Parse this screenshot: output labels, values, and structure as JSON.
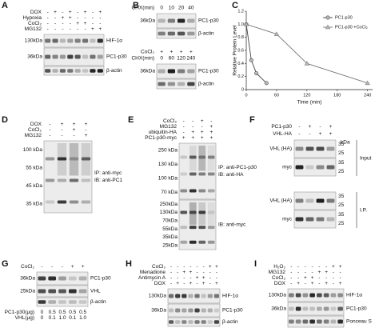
{
  "panels": [
    {
      "label": "A",
      "sections": [
        {
          "rows": [
            {
              "name": "DOX",
              "values": [
                "-",
                "+",
                "-",
                "+",
                "-",
                "+",
                "-",
                "+"
              ]
            },
            {
              "name": "Hypoxia",
              "values": [
                "-",
                "-",
                "+",
                "+",
                "-",
                "-",
                "-",
                "-"
              ]
            },
            {
              "name": "CoCl₂",
              "values": [
                "-",
                "-",
                "-",
                "-",
                "+",
                "+",
                "-",
                "-"
              ]
            },
            {
              "name": "MG132",
              "values": [
                "-",
                "-",
                "-",
                "-",
                "-",
                "-",
                "+",
                "+"
              ]
            }
          ],
          "blots": [
            {
              "markers": [
                "130kDa"
              ],
              "labels": [
                "HIF-1α"
              ]
            },
            {
              "markers": [
                "36kDa"
              ],
              "labels": [
                "PC1-p30"
              ]
            },
            {
              "labels": [
                "β-actin"
              ]
            }
          ]
        }
      ]
    },
    {
      "label": "B",
      "sections": [
        {
          "rows": [
            {
              "name": "CHX(min)",
              "values": [
                "0",
                "10",
                "20",
                "40"
              ]
            }
          ],
          "blots": [
            {
              "markers": [
                "36kDa"
              ],
              "labels": [
                "PC1-p30"
              ]
            },
            {
              "labels": [
                "β-actin"
              ]
            }
          ]
        },
        {
          "rows": [
            {
              "name": "CoCl₂",
              "values": [
                "+",
                "+",
                "+",
                "+"
              ]
            },
            {
              "name": "CHX(min)",
              "values": [
                "0",
                "60",
                "120",
                "240"
              ]
            }
          ],
          "blots": [
            {
              "markers": [
                "36kDa"
              ],
              "labels": [
                "PC1-p30"
              ]
            },
            {
              "labels": [
                "β-actin"
              ]
            }
          ]
        }
      ]
    },
    {
      "label": "D",
      "sections": [
        {
          "rows": [
            {
              "name": "DOX",
              "values": [
                "-",
                "+",
                "+",
                "+"
              ]
            },
            {
              "name": "CoCl₂",
              "values": [
                "-",
                "-",
                "+",
                "-"
              ]
            },
            {
              "name": "MG132",
              "values": [
                "-",
                "-",
                "-",
                "+"
              ]
            }
          ],
          "blots": [
            {
              "markers": [
                "100 kDa",
                "55 kDa",
                "45 kDa",
                "35 kDa"
              ],
              "labels": [
                "IP: anti-myc",
                "IB: anti-PC1"
              ]
            }
          ]
        }
      ]
    },
    {
      "label": "E",
      "sections": [
        {
          "rows": [
            {
              "name": "CoCl₂",
              "values": [
                "-",
                "-",
                "+",
                "-"
              ]
            },
            {
              "name": "MG132",
              "values": [
                "-",
                "-",
                "-",
                "+"
              ]
            },
            {
              "name": "ubiquitin-HA",
              "values": [
                "-",
                "+",
                "+",
                "+"
              ]
            },
            {
              "name": "PC1-p30-myc",
              "values": [
                "+",
                "+",
                "+",
                "+"
              ]
            }
          ],
          "blots": [
            {
              "markers": [
                "250 kDa",
                "130 kDa",
                "100 kDa",
                "70 kDa"
              ],
              "labels": [
                "IP: anti-PC1-p30",
                "IB: anti-HA"
              ]
            },
            {
              "markers": [
                "250kDa",
                "130kDa",
                "70kDa",
                "55kDa",
                "35kDa",
                "25kDa"
              ],
              "labels": [
                "IB: anti-myc"
              ]
            }
          ]
        }
      ]
    },
    {
      "label": "F",
      "header": "kDa",
      "sections": [
        {
          "rows": [
            {
              "name": "PC1-p30",
              "values": [
                "-",
                "+",
                "-",
                "+"
              ]
            },
            {
              "name": "VHL-HA",
              "values": [
                "-",
                "-",
                "+",
                "+"
              ]
            }
          ],
          "group": "Input",
          "blots": [
            {
              "markers": [
                "35",
                "25"
              ],
              "labels": [
                "VHL (HA)"
              ]
            },
            {
              "markers": [
                "35",
                "25"
              ],
              "labels": [
                "myc"
              ]
            }
          ]
        },
        {
          "group": "I.P.",
          "blots": [
            {
              "markers": [
                "35",
                "25"
              ],
              "labels": [
                "VHL (HA)"
              ]
            },
            {
              "markers": [
                "35",
                "25"
              ],
              "labels": [
                "myc"
              ]
            }
          ]
        }
      ]
    },
    {
      "label": "G",
      "sections": [
        {
          "rows": [
            {
              "name": "CoCl₂",
              "values": [
                "-",
                "-",
                "-",
                "+",
                "+"
              ]
            }
          ],
          "blots": [
            {
              "markers": [
                "36kDa"
              ],
              "labels": [
                "PC1-p30"
              ]
            },
            {
              "markers": [
                "25kDa"
              ],
              "labels": [
                "VHL"
              ]
            },
            {
              "labels": [
                "β-actin"
              ]
            }
          ]
        },
        {
          "rows": [
            {
              "name": "PC1-p30(μg)",
              "values": [
                "0",
                "0.5",
                "0.5",
                "0.5",
                "0.5"
              ]
            },
            {
              "name": "VHL(μg)",
              "values": [
                "0",
                "0.1",
                "1.0",
                "0.1",
                "1.0"
              ]
            }
          ]
        }
      ]
    },
    {
      "label": "H",
      "sections": [
        {
          "rows": [
            {
              "name": "CoCl₂",
              "values": [
                "-",
                "-",
                "-",
                "-",
                "-",
                "-",
                "+",
                "+"
              ]
            },
            {
              "name": "Menadione",
              "values": [
                "-",
                "-",
                "+",
                "+",
                "-",
                "-",
                "-",
                "-"
              ]
            },
            {
              "name": "Antimycin A",
              "values": [
                "-",
                "-",
                "-",
                "-",
                "+",
                "+",
                "-",
                "-"
              ]
            },
            {
              "name": "DOX",
              "values": [
                "-",
                "+",
                "-",
                "+",
                "-",
                "+",
                "-",
                "+"
              ]
            }
          ],
          "blots": [
            {
              "markers": [
                "130kDa"
              ],
              "labels": [
                "HIF-1α"
              ]
            },
            {
              "markers": [
                "36kDa"
              ],
              "labels": [
                "PC1-p30"
              ]
            },
            {
              "labels": [
                "β-actin"
              ]
            }
          ]
        }
      ]
    },
    {
      "label": "I",
      "sections": [
        {
          "rows": [
            {
              "name": "H₂O₂",
              "values": [
                "-",
                "-",
                "-",
                "-",
                "-",
                "-",
                "+",
                "+"
              ]
            },
            {
              "name": "MG132",
              "values": [
                "-",
                "-",
                "-",
                "-",
                "+",
                "+",
                "-",
                "-"
              ]
            },
            {
              "name": "CoCl₂",
              "values": [
                "-",
                "-",
                "+",
                "+",
                "-",
                "-",
                "-",
                "-"
              ]
            },
            {
              "name": "DOX",
              "values": [
                "-",
                "+",
                "-",
                "+",
                "-",
                "+",
                "-",
                "+"
              ]
            }
          ],
          "blots": [
            {
              "markers": [
                "130kDa"
              ],
              "labels": [
                "HIF-1α"
              ]
            },
            {
              "markers": [
                "36kDa"
              ],
              "labels": [
                "PC1-p30"
              ]
            },
            {
              "labels": [
                "Ponceau S"
              ]
            }
          ]
        }
      ]
    }
  ],
  "chart_data": {
    "type": "line",
    "panel_label": "C",
    "y_label": "Relative Protein Level",
    "x_label": "Time (min)",
    "xlim": [
      0,
      250
    ],
    "ylim": [
      0,
      1.2
    ],
    "xticks": [
      0,
      60,
      120,
      180,
      240
    ],
    "yticks": [
      0,
      0.2,
      0.4,
      0.6,
      0.8,
      {
        "value": 1,
        "label": "1.0"
      },
      1.2
    ],
    "legend": "upper right",
    "series": [
      {
        "name": "PC1-p30",
        "color": "#444444",
        "marker": "circle",
        "x": [
          0,
          10,
          20,
          40
        ],
        "values": [
          1,
          0.45,
          0.25,
          0.1
        ]
      },
      {
        "name": "PC1-p30 +CoCl₂",
        "color": "#777777",
        "marker": "triangle",
        "x": [
          0,
          60,
          120,
          240
        ],
        "values": [
          1,
          0.85,
          0.4,
          0.1
        ]
      }
    ]
  }
}
